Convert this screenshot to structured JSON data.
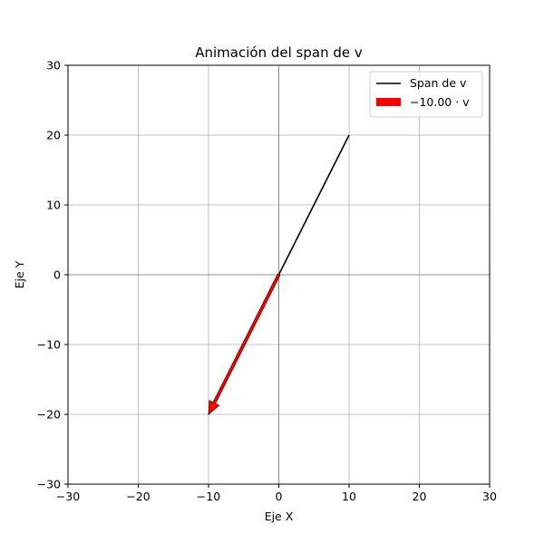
{
  "chart_data": {
    "type": "line",
    "title": "Animación del span de v",
    "xlabel": "Eje X",
    "ylabel": "Eje Y",
    "xlim": [
      -30,
      30
    ],
    "ylim": [
      -30,
      30
    ],
    "xticks": [
      -30,
      -20,
      -10,
      0,
      10,
      20,
      30
    ],
    "yticks": [
      -30,
      -20,
      -10,
      0,
      10,
      20,
      30
    ],
    "xtick_labels": [
      "−30",
      "−20",
      "−10",
      "0",
      "10",
      "20",
      "30"
    ],
    "ytick_labels": [
      "−30",
      "−20",
      "−10",
      "0",
      "10",
      "20",
      "30"
    ],
    "grid": true,
    "legend_position": "top-right",
    "series": [
      {
        "name": "Span de v",
        "kind": "line",
        "color": "#000000",
        "x": [
          -10,
          10
        ],
        "y": [
          -20,
          20
        ]
      },
      {
        "name": "−10.00 · v",
        "kind": "arrow",
        "color": "#ff0000",
        "from": [
          0,
          0
        ],
        "to": [
          -10,
          -20
        ]
      }
    ],
    "axhline": 0,
    "axvline": 0
  }
}
